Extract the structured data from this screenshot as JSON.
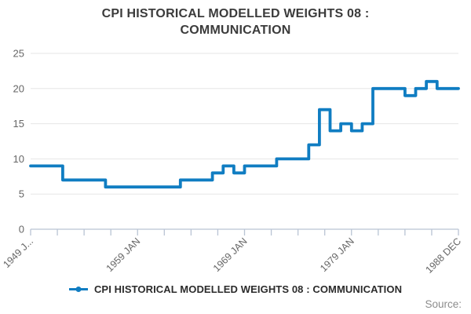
{
  "title": {
    "line1": "CPI HISTORICAL MODELLED WEIGHTS 08 :",
    "line2": "COMMUNICATION",
    "full": "CPI HISTORICAL MODELLED WEIGHTS 08 : COMMUNICATION"
  },
  "legend": {
    "label": "CPI HISTORICAL MODELLED WEIGHTS 08 : COMMUNICATION",
    "marker": "line-dot-marker"
  },
  "source": {
    "label": "Source:"
  },
  "colors": {
    "series_blue": "#107DC2",
    "gridline": "#e6e6e6",
    "axis_line": "#b9c4d4",
    "tick_label": "#666666",
    "title_text": "#3b3b3b",
    "legend_text": "#2b2b2b",
    "source_text": "#8c8c8c",
    "background": "#ffffff"
  },
  "chart_data": {
    "type": "line",
    "subtype": "step",
    "title": "CPI HISTORICAL MODELLED WEIGHTS 08 : COMMUNICATION",
    "xlabel": "",
    "ylabel": "",
    "x_start": "1949 JAN",
    "x_end": "1988 DEC",
    "total_months": 480,
    "ylim": [
      0,
      25
    ],
    "yticks": [
      0,
      5,
      10,
      15,
      20,
      25
    ],
    "grid": true,
    "legend_position": "bottom",
    "xtick_count": 17,
    "xtick_interval_months": 30,
    "xtick_labels": [
      {
        "label": "1949 J...",
        "tick": 0
      },
      {
        "label": "1959 JAN",
        "tick": 4
      },
      {
        "label": "1969 JAN",
        "tick": 8
      },
      {
        "label": "1979 JAN",
        "tick": 12
      },
      {
        "label": "1988 DEC",
        "tick": 16
      }
    ],
    "series": [
      {
        "name": "CPI HISTORICAL MODELLED WEIGHTS 08 : COMMUNICATION",
        "color": "#107DC2",
        "steps": [
          {
            "year": 1949,
            "value": 9
          },
          {
            "year": 1952,
            "value": 7
          },
          {
            "year": 1956,
            "value": 6
          },
          {
            "year": 1963,
            "value": 7
          },
          {
            "year": 1966,
            "value": 8
          },
          {
            "year": 1967,
            "value": 9
          },
          {
            "year": 1968,
            "value": 8
          },
          {
            "year": 1969,
            "value": 9
          },
          {
            "year": 1972,
            "value": 10
          },
          {
            "year": 1975,
            "value": 12
          },
          {
            "year": 1976,
            "value": 17
          },
          {
            "year": 1977,
            "value": 14
          },
          {
            "year": 1978,
            "value": 15
          },
          {
            "year": 1979,
            "value": 14
          },
          {
            "year": 1980,
            "value": 15
          },
          {
            "year": 1981,
            "value": 20
          },
          {
            "year": 1984,
            "value": 19
          },
          {
            "year": 1985,
            "value": 20
          },
          {
            "year": 1986,
            "value": 21
          },
          {
            "year": 1987,
            "value": 20
          }
        ],
        "end_year_inclusive": 1988
      }
    ]
  }
}
